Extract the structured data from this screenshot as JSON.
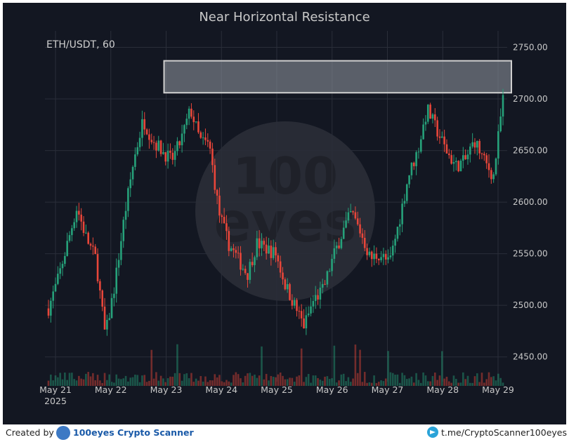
{
  "chart_data": {
    "type": "candlestick",
    "title": "Near Horizontal Resistance",
    "symbol_label": "ETH/USDT, 60",
    "y_axis_position": "right",
    "y_ticks": [
      "2750.00",
      "2700.00",
      "2650.00",
      "2600.00",
      "2550.00",
      "2500.00",
      "2450.00"
    ],
    "y_tick_values": [
      2750,
      2700,
      2650,
      2600,
      2550,
      2500,
      2450
    ],
    "ylim": [
      2426,
      2766
    ],
    "x_ticks": [
      "May 21",
      "May 22",
      "May 23",
      "May 24",
      "May 25",
      "May 26",
      "May 27",
      "May 28",
      "May 29"
    ],
    "x_year_label": "2025",
    "grid": true,
    "resistance_zone": {
      "low": 2706,
      "high": 2737,
      "start": "May 23"
    },
    "series_colors": {
      "up": "#26a17a",
      "down": "#e8463a",
      "zone_fill": "#8a8f99",
      "zone_stroke": "#d0d0d0"
    },
    "price_path": [
      [
        0,
        2497
      ],
      [
        2,
        2525
      ],
      [
        4,
        2560
      ],
      [
        6,
        2595
      ],
      [
        8,
        2565
      ],
      [
        10,
        2545
      ],
      [
        12,
        2470
      ],
      [
        14,
        2520
      ],
      [
        16,
        2585
      ],
      [
        18,
        2640
      ],
      [
        20,
        2680
      ],
      [
        22,
        2660
      ],
      [
        24,
        2650
      ],
      [
        26,
        2640
      ],
      [
        28,
        2660
      ],
      [
        30,
        2690
      ],
      [
        32,
        2660
      ],
      [
        34,
        2655
      ],
      [
        36,
        2590
      ],
      [
        38,
        2560
      ],
      [
        40,
        2545
      ],
      [
        42,
        2530
      ],
      [
        44,
        2560
      ],
      [
        46,
        2555
      ],
      [
        48,
        2550
      ],
      [
        50,
        2520
      ],
      [
        52,
        2500
      ],
      [
        54,
        2480
      ],
      [
        56,
        2505
      ],
      [
        58,
        2515
      ],
      [
        60,
        2545
      ],
      [
        62,
        2570
      ],
      [
        64,
        2590
      ],
      [
        66,
        2570
      ],
      [
        68,
        2545
      ],
      [
        70,
        2550
      ],
      [
        72,
        2540
      ],
      [
        74,
        2580
      ],
      [
        76,
        2625
      ],
      [
        78,
        2650
      ],
      [
        80,
        2690
      ],
      [
        82,
        2670
      ],
      [
        84,
        2650
      ],
      [
        86,
        2635
      ],
      [
        88,
        2640
      ],
      [
        90,
        2660
      ],
      [
        92,
        2640
      ],
      [
        94,
        2625
      ],
      [
        96,
        2700
      ]
    ],
    "volume_max": 2.4
  },
  "footer": {
    "created_by": "Created by",
    "brand": "100eyes Crypto Scanner",
    "telegram": "t.me/CryptoScanner100eyes"
  }
}
